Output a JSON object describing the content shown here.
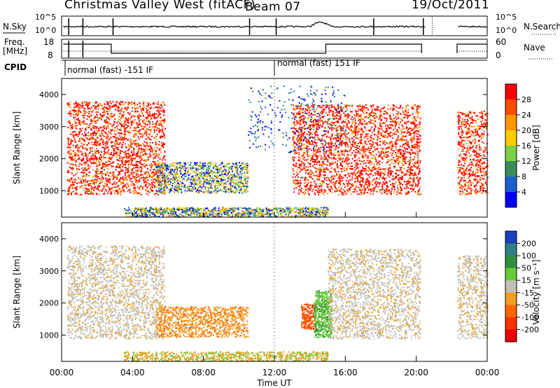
{
  "header": {
    "station": "Christmas Valley West (fitACF)",
    "beam": "Beam 07",
    "date": "19/Oct/2011"
  },
  "labels": {
    "nsky": "N.Sky",
    "nsearch": "N.Search",
    "freq": "Freq.",
    "mhz": "[MHz]",
    "nave": "Nave",
    "cpid": "CPID"
  },
  "cpid_segments": [
    {
      "label": "normal (fast) -151 IF",
      "from_hour": 0.5,
      "to_hour": 12
    },
    {
      "label": "normal (fast) 151 IF",
      "from_hour": 12,
      "to_hour": 24
    }
  ],
  "noise_panel": {
    "left_ticks": [
      "10^5",
      "10^0"
    ],
    "right_ticks": [
      "10^5",
      "10^0"
    ]
  },
  "freq_panel": {
    "left_ticks": [
      "18",
      "8"
    ],
    "right_ticks": [
      "60",
      "0"
    ]
  },
  "chart_data": [
    {
      "type": "heatmap",
      "panel": "power",
      "ylabel": "Slant Range [km]",
      "yticks": [
        1000,
        2000,
        3000,
        4000
      ],
      "ylim": [
        180,
        4500
      ],
      "xlim": [
        0,
        24
      ],
      "colorbar": {
        "label": "Power [dB]",
        "ticks": [
          "28",
          "24",
          "20",
          "16",
          "12",
          "8",
          "4"
        ],
        "colors": [
          "#ff0000",
          "#ff4d00",
          "#ff9600",
          "#ffcc00",
          "#7ad048",
          "#3a8c58",
          "#1c5fd0",
          "#0000ff"
        ]
      },
      "regions": [
        {
          "x0": 0.3,
          "x1": 5.8,
          "y0": 900,
          "y1": 3800,
          "level": "high"
        },
        {
          "x0": 5.3,
          "x1": 10.5,
          "y0": 950,
          "y1": 1900,
          "level": "mixed"
        },
        {
          "x0": 13.0,
          "x1": 20.2,
          "y0": 900,
          "y1": 3700,
          "level": "high"
        },
        {
          "x0": 22.3,
          "x1": 24.0,
          "y0": 900,
          "y1": 3500,
          "level": "high"
        },
        {
          "x0": 3.5,
          "x1": 15.0,
          "y0": 200,
          "y1": 500,
          "level": "mixed"
        }
      ]
    },
    {
      "type": "heatmap",
      "panel": "velocity",
      "ylabel": "Slant Range [km]",
      "xlabel": "Time UT",
      "xticks": [
        "00:00",
        "04:00",
        "08:00",
        "12:00",
        "16:00",
        "20:00",
        "00:00"
      ],
      "yticks": [
        1000,
        2000,
        3000,
        4000
      ],
      "ylim": [
        180,
        4500
      ],
      "xlim": [
        0,
        24
      ],
      "colorbar": {
        "label": "Velocity [m s⁻¹]",
        "ticks": [
          "200",
          "100",
          "50",
          "15",
          "-15",
          "-50",
          "-100",
          "-200"
        ],
        "colors": [
          "#1a3fbf",
          "#2f7f86",
          "#2f8f3f",
          "#66cc33",
          "#c0c0b8",
          "#f0a020",
          "#ff6600",
          "#ff3300",
          "#ee0000"
        ]
      },
      "regions": [
        {
          "x0": 0.3,
          "x1": 5.8,
          "y0": 900,
          "y1": 3800,
          "velocity": "-15 to 15"
        },
        {
          "x0": 5.3,
          "x1": 10.5,
          "y0": 950,
          "y1": 1900,
          "velocity": "-50"
        },
        {
          "x0": 13.5,
          "x1": 14.3,
          "y0": 1200,
          "y1": 2000,
          "velocity": "-100"
        },
        {
          "x0": 14.2,
          "x1": 15.2,
          "y0": 950,
          "y1": 2400,
          "velocity": "50"
        },
        {
          "x0": 15.0,
          "x1": 20.2,
          "y0": 900,
          "y1": 3700,
          "velocity": "-15 to 15"
        },
        {
          "x0": 22.3,
          "x1": 24.0,
          "y0": 900,
          "y1": 3500,
          "velocity": "-15 to 15"
        }
      ]
    }
  ]
}
